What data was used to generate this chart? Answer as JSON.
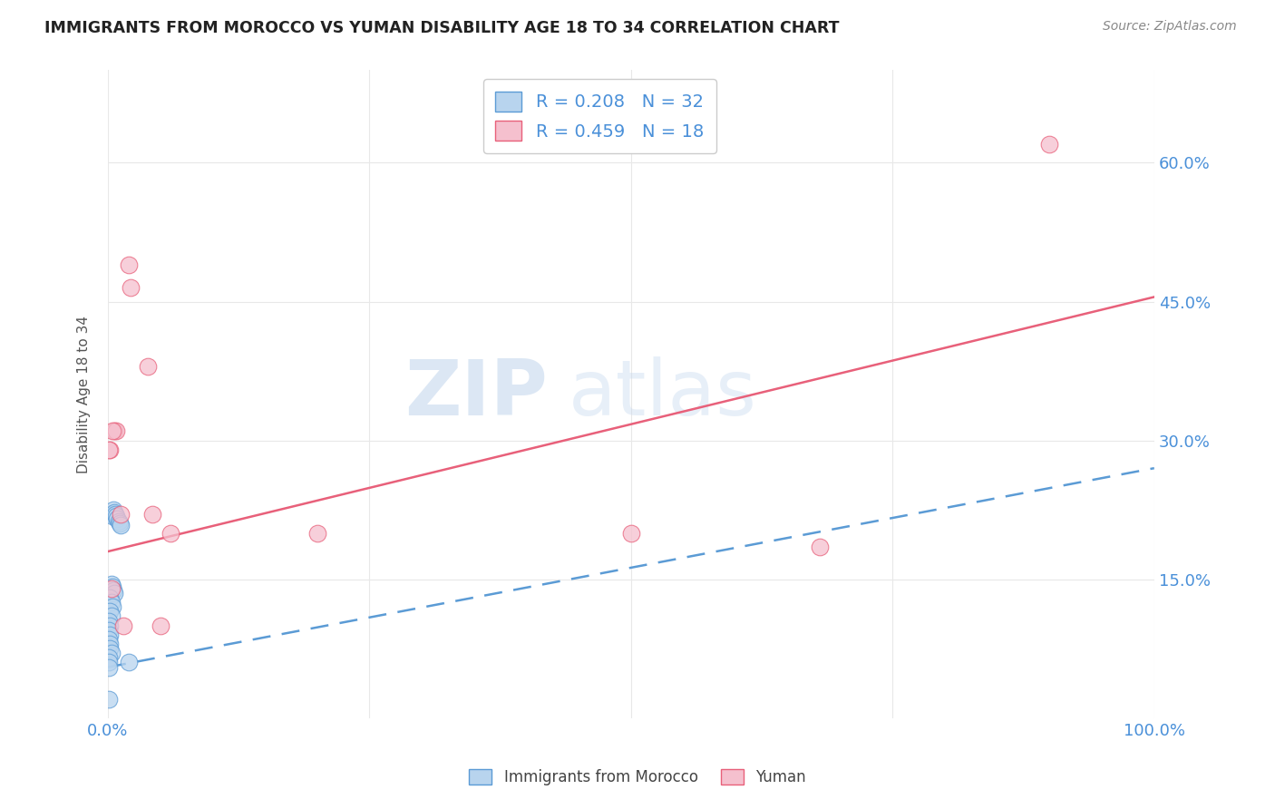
{
  "title": "IMMIGRANTS FROM MOROCCO VS YUMAN DISABILITY AGE 18 TO 34 CORRELATION CHART",
  "source": "Source: ZipAtlas.com",
  "ylabel": "Disability Age 18 to 34",
  "ytick_labels": [
    "15.0%",
    "30.0%",
    "45.0%",
    "60.0%"
  ],
  "legend_label1": "Immigrants from Morocco",
  "legend_label2": "Yuman",
  "R1": "0.208",
  "N1": "32",
  "R2": "0.459",
  "N2": "18",
  "watermark_zip": "ZIP",
  "watermark_atlas": "atlas",
  "blue_color": "#b8d4ee",
  "blue_edge_color": "#5b9bd5",
  "pink_color": "#f5c0ce",
  "pink_edge_color": "#e8607a",
  "blue_line_color": "#5b9bd5",
  "pink_line_color": "#e8607a",
  "title_color": "#222222",
  "axis_label_color": "#4a90d9",
  "source_color": "#888888",
  "ylabel_color": "#555555",
  "blue_scatter_x": [
    0.003,
    0.004,
    0.005,
    0.006,
    0.007,
    0.008,
    0.009,
    0.01,
    0.011,
    0.012,
    0.003,
    0.004,
    0.005,
    0.006,
    0.002,
    0.003,
    0.004,
    0.002,
    0.003,
    0.001,
    0.002,
    0.001,
    0.002,
    0.001,
    0.002,
    0.002,
    0.003,
    0.001,
    0.001,
    0.001,
    0.02,
    0.001
  ],
  "blue_scatter_y": [
    0.22,
    0.218,
    0.225,
    0.222,
    0.22,
    0.218,
    0.215,
    0.212,
    0.21,
    0.208,
    0.145,
    0.142,
    0.138,
    0.135,
    0.13,
    0.125,
    0.12,
    0.115,
    0.11,
    0.105,
    0.1,
    0.095,
    0.09,
    0.085,
    0.08,
    0.075,
    0.07,
    0.065,
    0.06,
    0.055,
    0.06,
    0.02
  ],
  "pink_scatter_x": [
    0.002,
    0.006,
    0.008,
    0.012,
    0.02,
    0.022,
    0.001,
    0.004,
    0.003,
    0.5,
    0.68,
    0.9,
    0.05,
    0.038,
    0.042,
    0.06,
    0.015,
    0.2
  ],
  "pink_scatter_y": [
    0.29,
    0.31,
    0.31,
    0.22,
    0.49,
    0.465,
    0.29,
    0.31,
    0.14,
    0.2,
    0.185,
    0.62,
    0.1,
    0.38,
    0.22,
    0.2,
    0.1,
    0.2
  ],
  "blue_trendline_x": [
    0.0,
    1.0
  ],
  "blue_trendline_y": [
    0.055,
    0.27
  ],
  "pink_trendline_x": [
    0.0,
    1.0
  ],
  "pink_trendline_y": [
    0.18,
    0.455
  ],
  "xlim": [
    0.0,
    1.0
  ],
  "ylim": [
    0.0,
    0.7
  ],
  "y_tick_vals": [
    0.15,
    0.3,
    0.45,
    0.6
  ],
  "grid_color": "#e8e8e8",
  "legend_edge_color": "#cccccc"
}
